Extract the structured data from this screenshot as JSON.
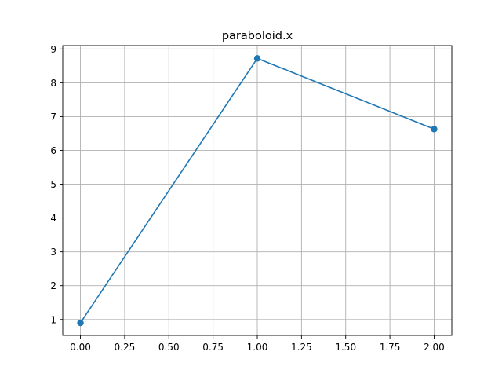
{
  "chart_data": {
    "type": "line",
    "title": "paraboloid.x",
    "xlabel": "",
    "ylabel": "",
    "x": [
      0,
      1,
      2
    ],
    "series": [
      {
        "values": [
          0.9,
          8.72,
          6.63
        ],
        "color": "#1f77b4",
        "marker": "circle"
      }
    ],
    "xlim": [
      -0.1,
      2.1
    ],
    "ylim": [
      0.53,
      9.1
    ],
    "xticks": [
      0.0,
      0.25,
      0.5,
      0.75,
      1.0,
      1.25,
      1.5,
      1.75,
      2.0
    ],
    "xtick_labels": [
      "0.00",
      "0.25",
      "0.50",
      "0.75",
      "1.00",
      "1.25",
      "1.50",
      "1.75",
      "2.00"
    ],
    "yticks": [
      1,
      2,
      3,
      4,
      5,
      6,
      7,
      8,
      9
    ],
    "ytick_labels": [
      "1",
      "2",
      "3",
      "4",
      "5",
      "6",
      "7",
      "8",
      "9"
    ],
    "grid": true,
    "legend": "none"
  }
}
